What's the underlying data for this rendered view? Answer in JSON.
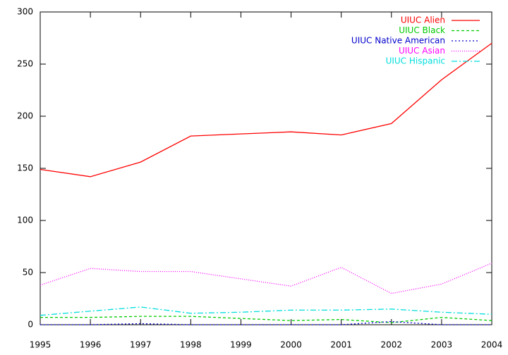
{
  "chart_data": {
    "type": "line",
    "x": [
      1995,
      1996,
      1997,
      1998,
      1999,
      2000,
      2001,
      2002,
      2003,
      2004
    ],
    "xlim": [
      1995,
      2004
    ],
    "xticks": [
      1995,
      1996,
      1997,
      1998,
      1999,
      2000,
      2001,
      2002,
      2003,
      2004
    ],
    "ylim": [
      0,
      300
    ],
    "yticks": [
      0,
      50,
      100,
      150,
      200,
      250,
      300
    ],
    "legend": "top-right",
    "series": [
      {
        "name": "UIUC Alien",
        "color": "#ff0000",
        "dash": "none",
        "values": [
          149,
          142,
          156,
          181,
          183,
          185,
          182,
          193,
          235,
          270
        ]
      },
      {
        "name": "UIUC Black",
        "color": "#00cc00",
        "dash": "4,3",
        "values": [
          7,
          7,
          8,
          8,
          6,
          4,
          5,
          2,
          7,
          4
        ]
      },
      {
        "name": "UIUC Native American",
        "color": "#0000cc",
        "dash": "2,3",
        "values": [
          0,
          0,
          1,
          0,
          0,
          0,
          0,
          3,
          0,
          0
        ]
      },
      {
        "name": "UIUC Asian",
        "color": "#ff00ff",
        "dash": "1,2",
        "values": [
          38,
          54,
          51,
          51,
          44,
          37,
          55,
          30,
          39,
          59
        ]
      },
      {
        "name": "UIUC Hispanic",
        "color": "#00dddd",
        "dash": "8,3,2,3",
        "values": [
          9,
          13,
          17,
          11,
          12,
          14,
          14,
          15,
          12,
          10
        ]
      }
    ]
  }
}
